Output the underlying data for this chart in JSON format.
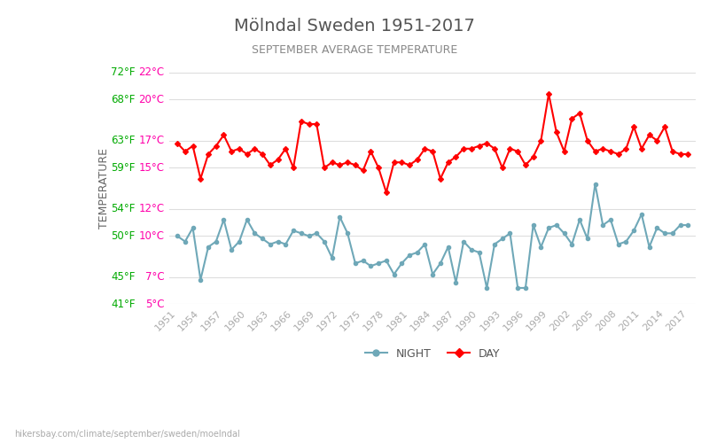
{
  "title": "Mölndal Sweden 1951-2017",
  "subtitle": "SEPTEMBER AVERAGE TEMPERATURE",
  "ylabel": "TEMPERATURE",
  "title_color": "#555555",
  "subtitle_color": "#888888",
  "ylabel_color": "#666666",
  "background_color": "#ffffff",
  "grid_color": "#dddddd",
  "years": [
    1951,
    1952,
    1953,
    1954,
    1955,
    1956,
    1957,
    1958,
    1959,
    1960,
    1961,
    1962,
    1963,
    1964,
    1965,
    1966,
    1967,
    1968,
    1969,
    1970,
    1971,
    1972,
    1973,
    1974,
    1975,
    1976,
    1977,
    1978,
    1979,
    1980,
    1981,
    1982,
    1983,
    1984,
    1985,
    1986,
    1987,
    1988,
    1989,
    1990,
    1991,
    1992,
    1993,
    1994,
    1995,
    1996,
    1997,
    1998,
    1999,
    2000,
    2001,
    2002,
    2003,
    2004,
    2005,
    2006,
    2007,
    2008,
    2009,
    2010,
    2011,
    2012,
    2013,
    2014,
    2015,
    2016,
    2017
  ],
  "day_temps": [
    16.8,
    16.2,
    16.6,
    14.2,
    16.0,
    16.6,
    17.4,
    16.2,
    16.4,
    16.0,
    16.4,
    16.0,
    15.2,
    15.6,
    16.4,
    15.0,
    18.4,
    18.2,
    18.2,
    15.0,
    15.4,
    15.2,
    15.4,
    15.2,
    14.8,
    16.2,
    15.0,
    13.2,
    15.4,
    15.4,
    15.2,
    15.6,
    16.4,
    16.2,
    14.2,
    15.4,
    15.8,
    16.4,
    16.4,
    16.6,
    16.8,
    16.4,
    15.0,
    16.4,
    16.2,
    15.2,
    15.8,
    17.0,
    20.4,
    17.6,
    16.2,
    18.6,
    19.0,
    17.0,
    16.2,
    16.4,
    16.2,
    16.0,
    16.4,
    18.0,
    16.4,
    17.4,
    17.0,
    18.0,
    16.2,
    16.0,
    16.0
  ],
  "night_temps": [
    10.0,
    9.6,
    10.6,
    6.8,
    9.2,
    9.6,
    11.2,
    9.0,
    9.6,
    11.2,
    10.2,
    9.8,
    9.4,
    9.6,
    9.4,
    10.4,
    10.2,
    10.0,
    10.2,
    9.6,
    8.4,
    11.4,
    10.2,
    8.0,
    8.2,
    7.8,
    8.0,
    8.2,
    7.2,
    8.0,
    8.6,
    8.8,
    9.4,
    7.2,
    8.0,
    9.2,
    6.6,
    9.6,
    9.0,
    8.8,
    6.2,
    9.4,
    9.8,
    10.2,
    6.2,
    6.2,
    10.8,
    9.2,
    10.6,
    10.8,
    10.2,
    9.4,
    11.2,
    9.8,
    13.8,
    10.8,
    11.2,
    9.4,
    9.6,
    10.4,
    11.6,
    9.2,
    10.6,
    10.2,
    10.2,
    10.8,
    10.8
  ],
  "day_color": "#ff0000",
  "night_color": "#6fa8b8",
  "day_marker": "D",
  "night_marker": "o",
  "marker_size": 3,
  "line_width": 1.5,
  "ylim_celsius": [
    5,
    22
  ],
  "yticks_celsius": [
    5,
    7,
    10,
    12,
    15,
    17,
    20,
    22
  ],
  "yticks_fahrenheit": [
    41,
    45,
    50,
    54,
    59,
    63,
    68,
    72
  ],
  "tick_label_color_green": "#00aa00",
  "tick_label_color_red": "#ff00aa",
  "xtick_years": [
    1951,
    1954,
    1957,
    1960,
    1963,
    1966,
    1969,
    1972,
    1975,
    1978,
    1981,
    1984,
    1987,
    1990,
    1993,
    1996,
    1999,
    2002,
    2005,
    2008,
    2011,
    2014,
    2017
  ],
  "legend_night_label": "NIGHT",
  "legend_day_label": "DAY",
  "watermark": "hikersbay.com/climate/september/sweden/moelndal"
}
